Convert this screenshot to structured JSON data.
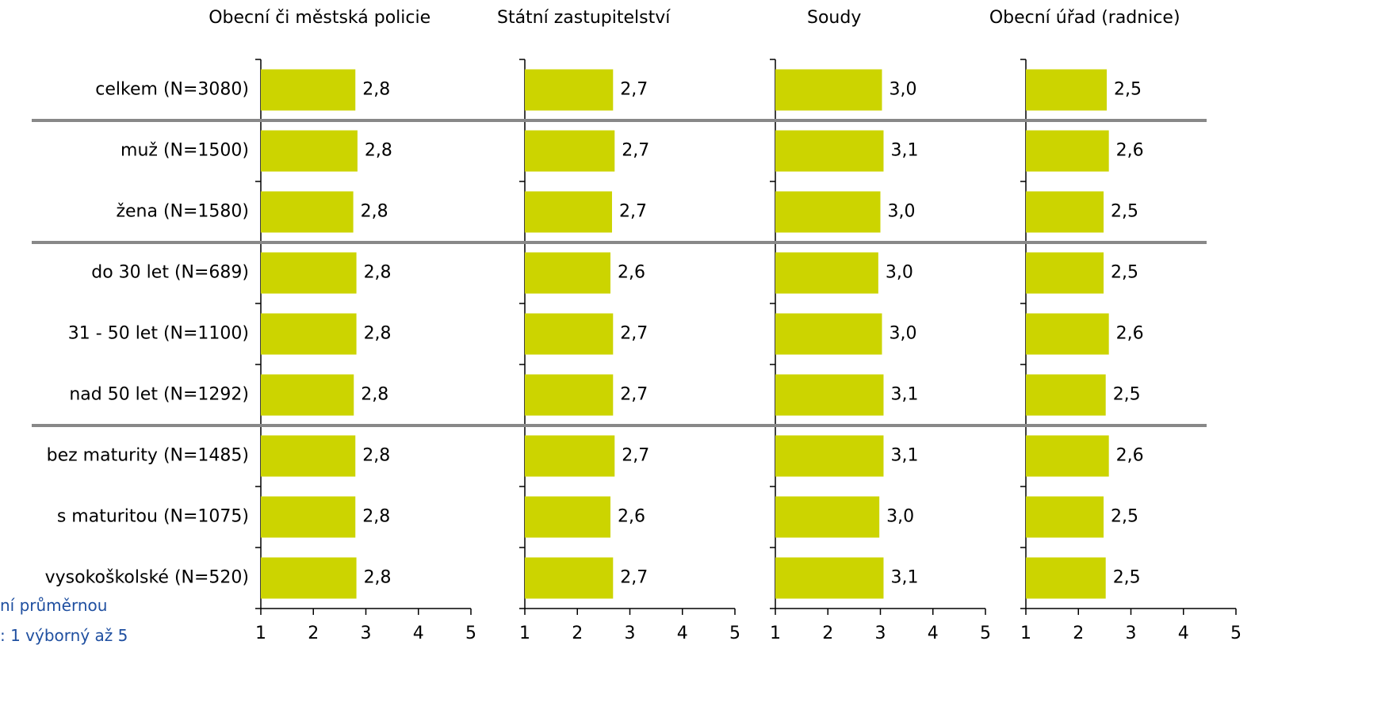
{
  "chart_data": [
    {
      "type": "bar",
      "orientation": "horizontal",
      "title": "Obecní či městská policie",
      "categories": [
        "celkem (N=3080)",
        "muž (N=1500)",
        "žena (N=1580)",
        "do 30 let (N=689)",
        "31 - 50 let (N=1100)",
        "nad 50 let (N=1292)",
        "bez maturity (N=1485)",
        "s maturitou (N=1075)",
        "vysokoškolské (N=520)"
      ],
      "values": [
        2.8,
        2.84,
        2.76,
        2.82,
        2.82,
        2.77,
        2.8,
        2.8,
        2.82
      ],
      "value_labels": [
        "2,8",
        "2,8",
        "2,8",
        "2,8",
        "2,8",
        "2,8",
        "2,8",
        "2,8",
        "2,8"
      ],
      "color": "#ccd400",
      "xlim": [
        1,
        5
      ],
      "xticks": [
        1,
        2,
        3,
        4,
        5
      ]
    },
    {
      "type": "bar",
      "orientation": "horizontal",
      "title": "Státní zastupitelství",
      "values": [
        2.68,
        2.71,
        2.66,
        2.63,
        2.68,
        2.68,
        2.71,
        2.63,
        2.68
      ],
      "value_labels": [
        "2,7",
        "2,7",
        "2,7",
        "2,6",
        "2,7",
        "2,7",
        "2,7",
        "2,6",
        "2,7"
      ],
      "color": "#ccd400",
      "xlim": [
        1,
        5
      ],
      "xticks": [
        1,
        2,
        3,
        4,
        5
      ]
    },
    {
      "type": "bar",
      "orientation": "horizontal",
      "title": "Soudy",
      "values": [
        3.03,
        3.06,
        3.0,
        2.96,
        3.03,
        3.06,
        3.06,
        2.98,
        3.06
      ],
      "value_labels": [
        "3,0",
        "3,1",
        "3,0",
        "3,0",
        "3,0",
        "3,1",
        "3,1",
        "3,0",
        "3,1"
      ],
      "color": "#ccd400",
      "xlim": [
        1,
        5
      ],
      "xticks": [
        1,
        2,
        3,
        4,
        5
      ]
    },
    {
      "type": "bar",
      "orientation": "horizontal",
      "title": "Obecní úřad (radnice)",
      "values": [
        2.54,
        2.58,
        2.48,
        2.48,
        2.58,
        2.52,
        2.58,
        2.48,
        2.52
      ],
      "value_labels": [
        "2,5",
        "2,6",
        "2,5",
        "2,5",
        "2,6",
        "2,5",
        "2,6",
        "2,5",
        "2,5"
      ],
      "color": "#ccd400",
      "xlim": [
        1,
        5
      ],
      "xticks": [
        1,
        2,
        3,
        4,
        5
      ]
    }
  ],
  "notes": [
    "ní průměrnou",
    ": 1 výborný až 5"
  ]
}
